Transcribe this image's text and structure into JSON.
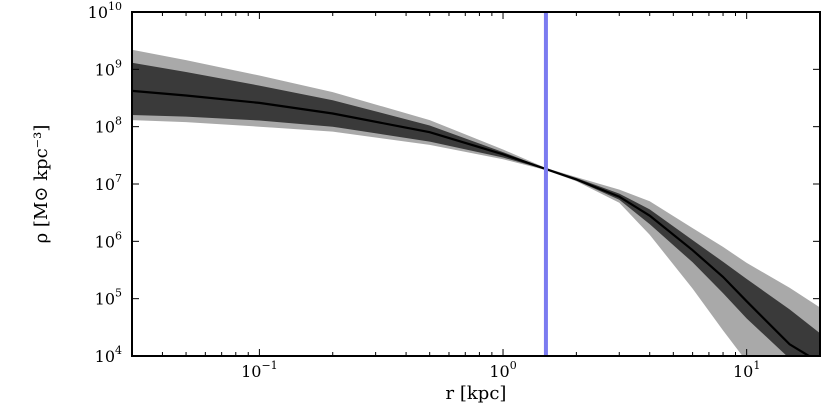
{
  "chart_data": {
    "type": "area",
    "xlabel": "r [kpc]",
    "ylabel": "ρ [M⊙ kpc⁻³]",
    "xscale": "log",
    "yscale": "log",
    "xlim": [
      0.03,
      20
    ],
    "ylim": [
      10000,
      10000000000
    ],
    "x_ticks": [
      {
        "value": 0.1,
        "base": "10",
        "exp": "−1"
      },
      {
        "value": 1,
        "base": "10",
        "exp": "0"
      },
      {
        "value": 10,
        "base": "10",
        "exp": "1"
      }
    ],
    "y_ticks": [
      {
        "value": 10000,
        "base": "10",
        "exp": "4"
      },
      {
        "value": 100000,
        "base": "10",
        "exp": "5"
      },
      {
        "value": 1000000,
        "base": "10",
        "exp": "6"
      },
      {
        "value": 10000000,
        "base": "10",
        "exp": "7"
      },
      {
        "value": 100000000,
        "base": "10",
        "exp": "8"
      },
      {
        "value": 1000000000,
        "base": "10",
        "exp": "9"
      },
      {
        "value": 10000000000,
        "base": "10",
        "exp": "10"
      }
    ],
    "vertical_line": {
      "x": 1.5,
      "color": "#7b7bf0"
    },
    "colors": {
      "median": "#000000",
      "inner_band": "#3a3a3a",
      "outer_band": "#a9a9a9"
    },
    "series": [
      {
        "role": "outer_band",
        "x": [
          0.03,
          0.05,
          0.1,
          0.2,
          0.5,
          1.0,
          1.5,
          2.0,
          3.0,
          4.0,
          6.0,
          8.0,
          10.0,
          15.0,
          20.0
        ],
        "lower": [
          130000000.0,
          120000000.0,
          100000000.0,
          82000000.0,
          48000000.0,
          27000000.0,
          17500000.0,
          11200000.0,
          4700000.0,
          1300000.0,
          150000.0,
          28000.0,
          8000,
          6000,
          6000
        ],
        "upper": [
          2200000000.0,
          1450000000.0,
          780000000.0,
          400000000.0,
          130000000.0,
          40000000.0,
          19000000.0,
          13200000.0,
          8000000.0,
          5000000.0,
          1700000.0,
          800000.0,
          420000.0,
          155000.0,
          70000.0
        ]
      },
      {
        "role": "inner_band",
        "x": [
          0.03,
          0.05,
          0.1,
          0.2,
          0.5,
          1.0,
          1.5,
          2.0,
          3.0,
          4.0,
          6.0,
          8.0,
          10.0,
          15.0,
          20.0
        ],
        "lower": [
          160000000.0,
          150000000.0,
          128000000.0,
          100000000.0,
          55000000.0,
          29000000.0,
          17800000.0,
          11500000.0,
          5300000.0,
          2000000.0,
          430000.0,
          125000.0,
          45000.0,
          9000,
          6000
        ],
        "upper": [
          1300000000.0,
          900000000.0,
          520000000.0,
          290000000.0,
          105000000.0,
          36000000.0,
          18600000.0,
          12700000.0,
          6800000.0,
          3600000.0,
          1050000.0,
          440000.0,
          220000.0,
          65000.0,
          25000.0
        ]
      },
      {
        "role": "median",
        "x": [
          0.03,
          0.05,
          0.1,
          0.2,
          0.5,
          1.0,
          1.5,
          2.0,
          3.0,
          4.0,
          6.0,
          8.0,
          10.0,
          15.0,
          18.0
        ],
        "y": [
          420000000.0,
          350000000.0,
          260000000.0,
          170000000.0,
          80000000.0,
          33000000.0,
          18200000.0,
          12000000.0,
          6000000.0,
          2800000.0,
          700000.0,
          240000.0,
          90000.0,
          16000.0,
          10000.0
        ]
      }
    ]
  }
}
